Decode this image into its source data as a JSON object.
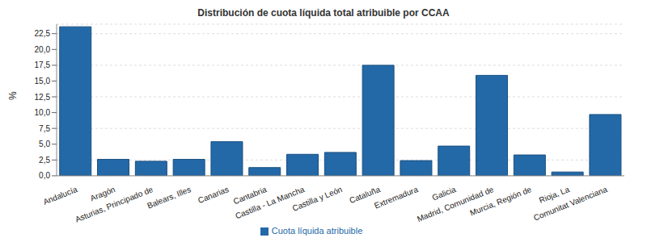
{
  "chart_data": {
    "type": "bar",
    "title": "Distribución de cuota líquida total atribuible por CCAA",
    "y_label": "%",
    "categories": [
      "Andalucía",
      "Aragón",
      "Asturias, Principado de",
      "Balears, Illes",
      "Canarias",
      "Cantabria",
      "Castilla - La Mancha",
      "Castilla y León",
      "Cataluña",
      "Extremadura",
      "Galicia",
      "Madrid, Comunidad de",
      "Murcia, Región de",
      "Rioja, La",
      "Comunitat Valenciana"
    ],
    "series": [
      {
        "name": "Cuota líquida atribuible",
        "color": "#2369a8",
        "values": [
          23.6,
          2.6,
          2.3,
          2.6,
          5.4,
          1.3,
          3.4,
          3.7,
          17.5,
          2.4,
          4.7,
          15.9,
          3.3,
          0.6,
          9.7
        ]
      }
    ],
    "ylim": [
      0,
      24
    ],
    "yticks": [
      {
        "value": 0,
        "label": "0,0"
      },
      {
        "value": 2.5,
        "label": "2,5"
      },
      {
        "value": 5,
        "label": "5,0"
      },
      {
        "value": 7.5,
        "label": "7,5"
      },
      {
        "value": 10,
        "label": "10,0"
      },
      {
        "value": 12.5,
        "label": "12,5"
      },
      {
        "value": 15,
        "label": "15,0"
      },
      {
        "value": 17.5,
        "label": "17,5"
      },
      {
        "value": 20,
        "label": "20,0"
      },
      {
        "value": 22.5,
        "label": "22,5"
      }
    ],
    "grid": true,
    "legend": "bottom"
  }
}
